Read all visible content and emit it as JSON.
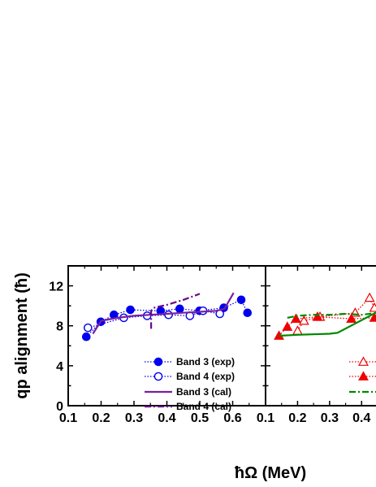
{
  "chart_data": [
    {
      "type": "line",
      "panel": "left",
      "xlabel": "ħΩ (MeV)",
      "ylabel": "qp alignment (ħ)",
      "xlim": [
        0.1,
        0.7
      ],
      "ylim": [
        0,
        14
      ],
      "xticks": [
        "0.1",
        "0.2",
        "0.3",
        "0.4",
        "0.5",
        "0.6"
      ],
      "yticks": [
        "0",
        "4",
        "8",
        "12"
      ],
      "legend_position": "bottom-right",
      "series": [
        {
          "name": "Band 3 (exp)",
          "style": "dotted-filled-circles",
          "color": "#0000ee",
          "points": [
            [
              0.155,
              6.9
            ],
            [
              0.199,
              8.4
            ],
            [
              0.239,
              9.1
            ],
            [
              0.289,
              9.6
            ],
            [
              0.381,
              9.5
            ],
            [
              0.439,
              9.7
            ],
            [
              0.499,
              9.5
            ],
            [
              0.573,
              9.8
            ],
            [
              0.626,
              10.6
            ],
            [
              0.645,
              9.3
            ]
          ]
        },
        {
          "name": "Band 4 (exp)",
          "style": "dotted-open-circles",
          "color": "#0000ee",
          "points": [
            [
              0.16,
              7.8
            ],
            [
              0.269,
              8.8
            ],
            [
              0.34,
              9.0
            ],
            [
              0.405,
              9.1
            ],
            [
              0.47,
              9.0
            ],
            [
              0.51,
              9.5
            ],
            [
              0.561,
              9.2
            ]
          ]
        },
        {
          "name": "Band 3 (cal)",
          "style": "solid",
          "color": "#7a1fa2",
          "points": [
            [
              0.175,
              7.2
            ],
            [
              0.2,
              8.5
            ],
            [
              0.25,
              8.8
            ],
            [
              0.3,
              9.0
            ],
            [
              0.35,
              9.1
            ],
            [
              0.4,
              9.2
            ],
            [
              0.45,
              9.3
            ],
            [
              0.5,
              9.4
            ],
            [
              0.55,
              9.5
            ],
            [
              0.575,
              9.7
            ],
            [
              0.603,
              11.3
            ]
          ]
        },
        {
          "name": "Band 4 (cal)",
          "style": "dash-dot",
          "color": "#6a0a8a",
          "points": [
            [
              0.352,
              7.7
            ],
            [
              0.352,
              9.5
            ],
            [
              0.36,
              9.8
            ],
            [
              0.4,
              10.1
            ],
            [
              0.45,
              10.6
            ],
            [
              0.5,
              11.2
            ]
          ]
        }
      ],
      "legend": [
        {
          "label": "Band 3 (exp)",
          "series": 0
        },
        {
          "label": "Band 4 (exp)",
          "series": 1
        },
        {
          "label": "Band 3 (cal)",
          "series": 2
        },
        {
          "label": "Band 4 (cal)",
          "series": 3
        }
      ]
    },
    {
      "type": "line",
      "panel": "right",
      "xlabel": "",
      "ylabel": "",
      "xlim": [
        0.1,
        0.45
      ],
      "ylim": [
        0,
        14
      ],
      "xticks": [
        "0.1",
        "0.2",
        "0.3",
        "0.4"
      ],
      "series": [
        {
          "style": "dotted-open-triangles",
          "color": "#ee0000",
          "points": [
            [
              0.2,
              7.5
            ],
            [
              0.22,
              8.5
            ],
            [
              0.27,
              8.9
            ],
            [
              0.38,
              9.3
            ],
            [
              0.425,
              10.8
            ],
            [
              0.44,
              9.8
            ]
          ]
        },
        {
          "style": "dotted-filled-triangles",
          "color": "#ee0000",
          "points": [
            [
              0.142,
              7.0
            ],
            [
              0.168,
              7.9
            ],
            [
              0.195,
              8.7
            ],
            [
              0.262,
              8.9
            ],
            [
              0.368,
              8.7
            ],
            [
              0.44,
              8.8
            ]
          ]
        },
        {
          "style": "dash-dot",
          "color": "#008800",
          "points": [
            [
              0.168,
              8.8
            ],
            [
              0.2,
              9.0
            ],
            [
              0.25,
              9.1
            ],
            [
              0.3,
              9.1
            ],
            [
              0.35,
              9.2
            ],
            [
              0.4,
              9.1
            ],
            [
              0.45,
              9.3
            ]
          ]
        },
        {
          "style": "solid",
          "color": "#008800",
          "points": [
            [
              0.142,
              7.0
            ],
            [
              0.2,
              7.1
            ],
            [
              0.3,
              7.2
            ],
            [
              0.325,
              7.3
            ],
            [
              0.45,
              9.4
            ]
          ]
        }
      ],
      "legend": [
        {
          "label": "",
          "series": 0
        },
        {
          "label": "",
          "series": 1
        },
        {
          "label": "",
          "series": 2
        },
        {
          "label": "",
          "series": 3
        }
      ]
    }
  ]
}
